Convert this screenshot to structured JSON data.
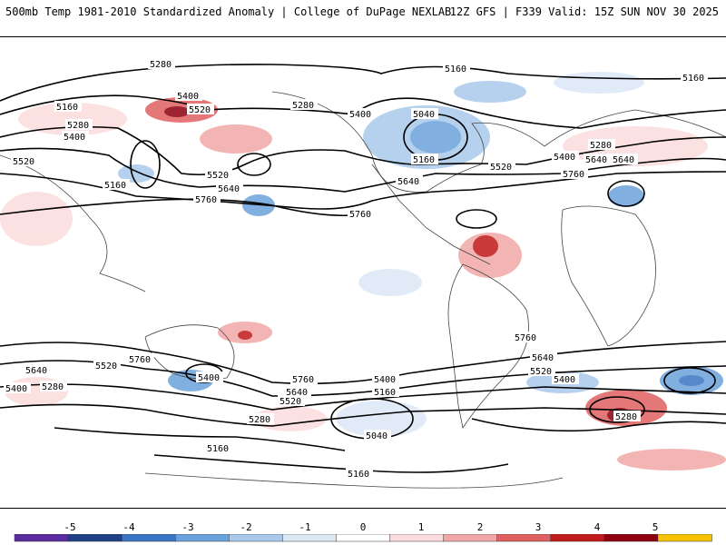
{
  "header": {
    "title": "500mb Temp 1981-2010 Standardized Anomaly | College of DuPage NEXLAB",
    "run_info": "12Z GFS | F339 Valid: 15Z SUN NOV 30 2025"
  },
  "colorbar": {
    "ticks": [
      "-5",
      "-4",
      "-3",
      "-2",
      "-1",
      "0",
      "1",
      "2",
      "3",
      "4",
      "5"
    ],
    "colors": [
      "#5a2ca0",
      "#1f3f86",
      "#3a74c4",
      "#6aa2db",
      "#a9c9ec",
      "#dbe8f6",
      "#ffffff",
      "#fbdcdc",
      "#f2a7a7",
      "#e06060",
      "#c01a1a",
      "#8c0010",
      "#f6c200"
    ]
  },
  "contour_labels": [
    "5280",
    "5160",
    "5400",
    "5280",
    "5160",
    "5520",
    "5400",
    "5280",
    "5160",
    "5520",
    "5640",
    "5760",
    "5400",
    "5040",
    "5160",
    "5640",
    "5520",
    "5760",
    "5160",
    "5400",
    "5520",
    "5640",
    "5760",
    "5280",
    "5640",
    "5400",
    "5280",
    "5640",
    "5520",
    "5760",
    "5400",
    "5760",
    "5640",
    "5520",
    "5400",
    "5160",
    "5280",
    "5040",
    "5160",
    "5760",
    "5640",
    "5520",
    "5400",
    "5280",
    "5160"
  ]
}
